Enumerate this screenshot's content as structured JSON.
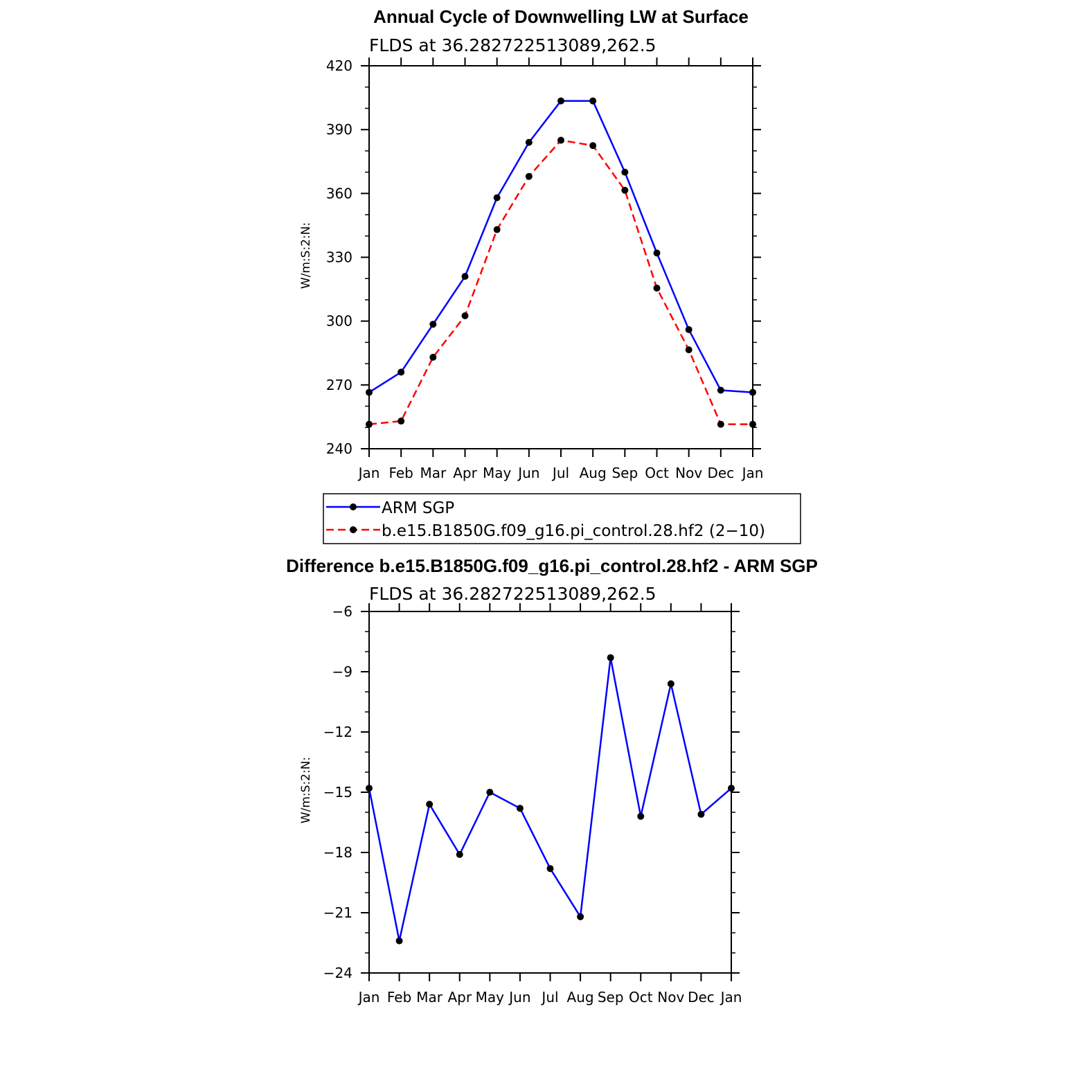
{
  "colors": {
    "arm": "#0000ff",
    "model": "#ff0000",
    "diff": "#0000ff",
    "marker": "#000000",
    "axis": "#000000"
  },
  "chart_data": [
    {
      "type": "line",
      "title": "Annual Cycle of Downwelling LW at Surface",
      "subtitle": "FLDS at 36.282722513089,262.5",
      "ylabel": "W/m:S:2:N:",
      "xlabel": "",
      "categories": [
        "Jan",
        "Feb",
        "Mar",
        "Apr",
        "May",
        "Jun",
        "Jul",
        "Aug",
        "Sep",
        "Oct",
        "Nov",
        "Dec",
        "Jan"
      ],
      "ylim": [
        240,
        420
      ],
      "yticks": [
        "240",
        "270",
        "300",
        "330",
        "360",
        "390",
        "420"
      ],
      "series": [
        {
          "name": "ARM SGP",
          "style": "solid",
          "values": [
            266.5,
            276,
            298.5,
            321,
            358,
            384,
            403.5,
            403.5,
            370,
            332,
            296,
            267.5,
            266.5
          ]
        },
        {
          "name": "b.e15.B1850G.f09_g16.pi_control.28.hf2 (2−10)",
          "style": "dashed",
          "values": [
            251.5,
            253,
            283,
            302.5,
            343,
            368,
            385,
            382.5,
            361.5,
            315.5,
            286.5,
            251.5,
            251.5
          ]
        }
      ],
      "legend": "below"
    },
    {
      "type": "line",
      "title": "Difference b.e15.B1850G.f09_g16.pi_control.28.hf2 - ARM SGP",
      "subtitle": "FLDS at 36.282722513089,262.5",
      "ylabel": "W/m:S:2:N:",
      "xlabel": "",
      "categories": [
        "Jan",
        "Feb",
        "Mar",
        "Apr",
        "May",
        "Jun",
        "Jul",
        "Aug",
        "Sep",
        "Oct",
        "Nov",
        "Dec",
        "Jan"
      ],
      "ylim": [
        -24,
        -6
      ],
      "yticks": [
        "−24",
        "−21",
        "−18",
        "−15",
        "−12",
        "−9",
        "−6"
      ],
      "series": [
        {
          "style": "solid",
          "values": [
            -14.8,
            -22.4,
            -15.6,
            -18.1,
            -15.0,
            -15.8,
            -18.8,
            -21.2,
            -8.3,
            -16.2,
            -9.6,
            -16.1,
            -14.8
          ]
        }
      ]
    }
  ]
}
